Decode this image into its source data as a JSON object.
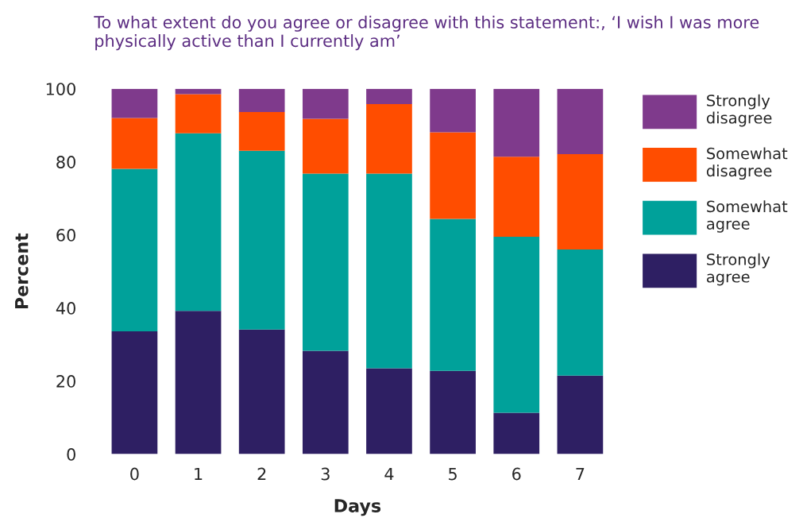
{
  "chart_data": {
    "type": "bar",
    "stacked": true,
    "title": "To what extent do you agree or disagree with this statement:, ‘I wish I was more physically active than I currently am’",
    "xlabel": "Days",
    "ylabel": "Percent",
    "categories": [
      "0",
      "1",
      "2",
      "3",
      "4",
      "5",
      "6",
      "7"
    ],
    "series": [
      {
        "name": "Strongly\nagree",
        "color": "#2e1f63",
        "values": [
          33.6,
          39.2,
          34.1,
          28.3,
          23.5,
          22.8,
          11.3,
          21.5
        ]
      },
      {
        "name": "Somewhat\nagree",
        "color": "#00a19a",
        "values": [
          44.5,
          48.6,
          48.9,
          48.5,
          53.3,
          41.6,
          48.2,
          34.5
        ]
      },
      {
        "name": "Somewhat\ndisagree",
        "color": "#ff4d00",
        "values": [
          13.9,
          10.7,
          10.6,
          15.0,
          19.0,
          23.7,
          21.9,
          26.1
        ]
      },
      {
        "name": "Strongly\ndisagree",
        "color": "#7f3a8c",
        "values": [
          8.0,
          1.5,
          6.4,
          8.2,
          4.2,
          11.9,
          18.6,
          17.9
        ]
      }
    ],
    "ylim": [
      0,
      100
    ],
    "yticks": [
      0,
      20,
      40,
      60,
      80,
      100
    ],
    "grid": false,
    "legend": "right"
  }
}
